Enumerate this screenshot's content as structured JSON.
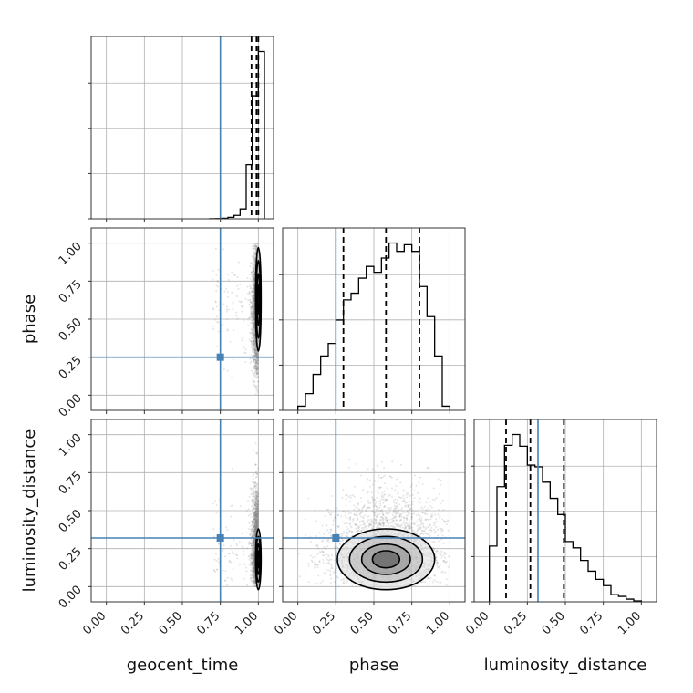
{
  "chart_data": {
    "type": "corner",
    "parameters": [
      "geocent_time",
      "phase",
      "luminosity_distance"
    ],
    "axis_range": [
      -0.1,
      1.1
    ],
    "tick_values": [
      0.0,
      0.25,
      0.5,
      0.75,
      1.0
    ],
    "tick_labels": [
      "0.00",
      "0.25",
      "0.50",
      "0.75",
      "1.00"
    ],
    "grid": true,
    "colors": {
      "hist": "#000000",
      "truth": "#4682b4",
      "samples": "#888888",
      "axes": "#333333",
      "grid": "#b0b0b0"
    },
    "truths": {
      "geocent_time": 0.75,
      "phase": 0.25,
      "luminosity_distance": 0.32
    },
    "histograms": [
      {
        "param": "geocent_time",
        "bin_edges": [
          0.68,
          0.72,
          0.76,
          0.8,
          0.84,
          0.88,
          0.92,
          0.96,
          1.0,
          1.04
        ],
        "counts": [
          0.2,
          0.4,
          1,
          3,
          7,
          20,
          110,
          250,
          340
        ],
        "quantiles": [
          0.955,
          0.988,
          1.0
        ]
      },
      {
        "param": "phase",
        "bin_edges": [
          0.0,
          0.05,
          0.1,
          0.15,
          0.2,
          0.25,
          0.3,
          0.35,
          0.4,
          0.45,
          0.5,
          0.55,
          0.6,
          0.65,
          0.7,
          0.75,
          0.8,
          0.85,
          0.9,
          0.95,
          1.0
        ],
        "counts": [
          5,
          20,
          43,
          65,
          80,
          108,
          132,
          140,
          158,
          172,
          165,
          182,
          200,
          190,
          198,
          190,
          148,
          112,
          65,
          5
        ],
        "quantiles": [
          0.3,
          0.58,
          0.8
        ]
      },
      {
        "param": "luminosity_distance",
        "bin_edges": [
          0.0,
          0.05,
          0.1,
          0.15,
          0.2,
          0.25,
          0.3,
          0.35,
          0.4,
          0.45,
          0.5,
          0.55,
          0.6,
          0.65,
          0.7,
          0.75,
          0.8,
          0.85,
          0.9,
          0.95,
          1.0
        ],
        "counts": [
          62,
          128,
          174,
          186,
          173,
          152,
          150,
          133,
          115,
          97,
          67,
          60,
          46,
          34,
          25,
          18,
          8,
          6,
          3,
          1
        ],
        "quantiles": [
          0.11,
          0.27,
          0.49
        ]
      }
    ],
    "density_panels": [
      {
        "x": "geocent_time",
        "y": "phase"
      },
      {
        "x": "geocent_time",
        "y": "luminosity_distance"
      },
      {
        "x": "phase",
        "y": "luminosity_distance"
      }
    ]
  }
}
